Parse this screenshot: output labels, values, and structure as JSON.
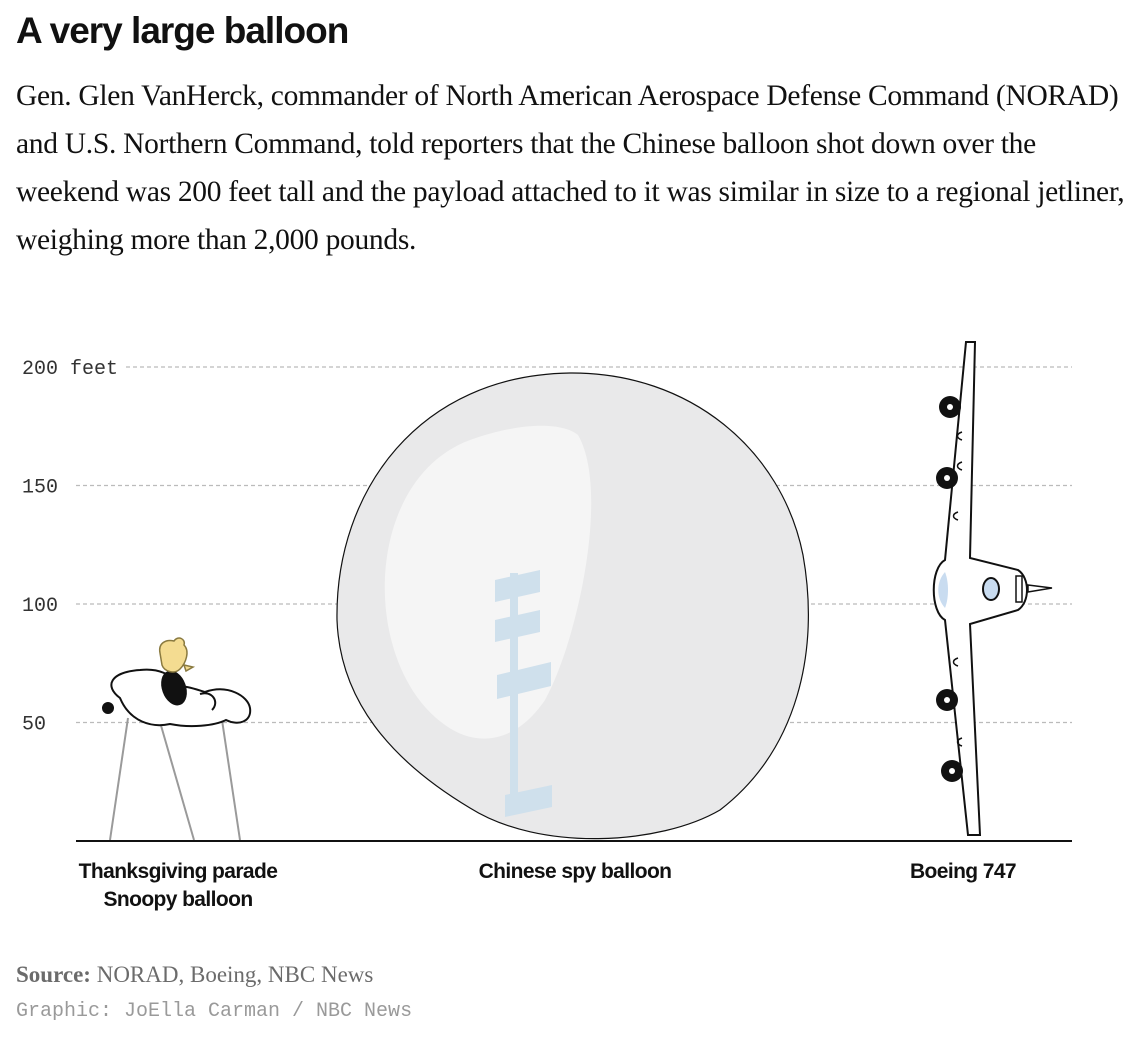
{
  "header": {
    "title": "A very large balloon",
    "description": "Gen. Glen VanHerck, commander of North American Aerospace Defense Command (NORAD) and U.S. Northern Command, told reporters that the Chinese balloon shot down over the weekend was 200 feet tall and the payload attached to it was similar in size to a regional jetliner, weighing more than 2,000 pounds."
  },
  "chart_data": {
    "type": "bar",
    "ylim": [
      0,
      200
    ],
    "grid": true,
    "y_ticks": [
      {
        "value": 200,
        "label": "200 feet"
      },
      {
        "value": 150,
        "label": "150"
      },
      {
        "value": 100,
        "label": "100"
      },
      {
        "value": 50,
        "label": "50"
      }
    ],
    "categories": [
      {
        "name": "Thanksgiving parade Snoopy balloon",
        "lines": [
          "Thanksgiving parade",
          "Snoopy balloon"
        ],
        "value": 70
      },
      {
        "name": "Chinese spy balloon",
        "lines": [
          "Chinese spy balloon"
        ],
        "value": 200
      },
      {
        "name": "Boeing 747",
        "lines": [
          "Boeing 747"
        ],
        "value": 211
      }
    ],
    "colors": {
      "balloon_fill": "#e9e9ea",
      "balloon_highlight": "#f6f6f6",
      "payload": "#cfe0ec",
      "grid": "#bbbbbb",
      "axis": "#111111",
      "snoopy_woodstock": "#f4dc91",
      "plane_blue": "#c9dcf0"
    }
  },
  "footer": {
    "source_label": "Source:",
    "source_text": "NORAD, Boeing, NBC News",
    "credit": "Graphic: JoElla Carman / NBC News"
  }
}
